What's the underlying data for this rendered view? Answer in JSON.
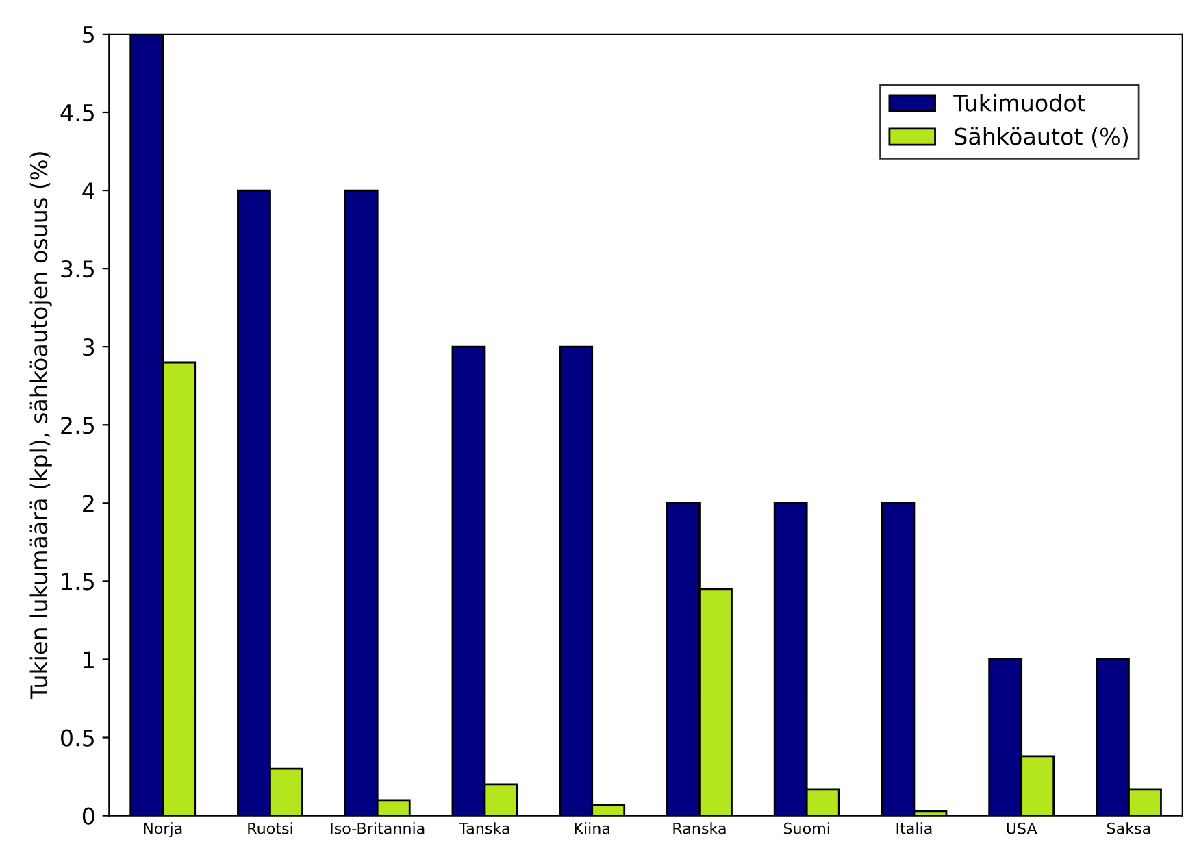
{
  "chart_data": {
    "type": "bar",
    "ylabel": "Tukien lukumäärä (kpl), sähköautojen osuus (%)",
    "categories": [
      "Norja",
      "Ruotsi",
      "Iso-Britannia",
      "Tanska",
      "Kiina",
      "Ranska",
      "Suomi",
      "Italia",
      "USA",
      "Saksa"
    ],
    "series": [
      {
        "name": "Tukimuodot",
        "color": "#000080",
        "values": [
          5,
          4,
          4,
          3,
          3,
          2,
          2,
          2,
          1,
          1
        ]
      },
      {
        "name": "Sähköautot (%)",
        "color": "#b5e61d",
        "values": [
          2.9,
          0.3,
          0.1,
          0.2,
          0.07,
          1.45,
          0.17,
          0.03,
          0.38,
          0.17
        ]
      }
    ],
    "ylim": [
      0,
      5
    ],
    "yticks": [
      0,
      0.5,
      1,
      1.5,
      2,
      2.5,
      3,
      3.5,
      4,
      4.5,
      5
    ],
    "grid": false,
    "legend": "top right"
  }
}
